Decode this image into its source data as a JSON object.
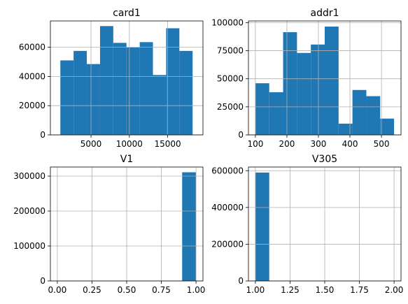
{
  "colors": {
    "bar": "#1f77b4",
    "grid": "#b0b0b0",
    "axis": "#000000"
  },
  "chart_data": [
    {
      "type": "bar",
      "title": "card1",
      "bin_edges": [
        1000,
        2725,
        4450,
        6175,
        7900,
        9625,
        11350,
        13075,
        14800,
        16525,
        18250
      ],
      "values": [
        51000,
        57500,
        48500,
        74500,
        63000,
        60000,
        63500,
        41000,
        73000,
        57500
      ],
      "xlim": [
        -300,
        19600
      ],
      "ylim": [
        0,
        78000
      ],
      "xticks": [
        5000,
        10000,
        15000
      ],
      "xtick_labels": [
        "5000",
        "10000",
        "15000"
      ],
      "yticks": [
        0,
        20000,
        40000,
        60000
      ],
      "ytick_labels": [
        "0",
        "20000",
        "40000",
        "60000"
      ],
      "grid": true
    },
    {
      "type": "bar",
      "title": "addr1",
      "bin_edges": [
        100,
        144,
        188,
        232,
        276,
        320,
        364,
        408,
        452,
        496,
        540
      ],
      "values": [
        46000,
        38000,
        91500,
        73000,
        80500,
        96500,
        10000,
        40000,
        34500,
        14500
      ],
      "xlim": [
        78,
        562
      ],
      "ylim": [
        0,
        101500
      ],
      "xticks": [
        100,
        200,
        300,
        400,
        500
      ],
      "xtick_labels": [
        "100",
        "200",
        "300",
        "400",
        "500"
      ],
      "yticks": [
        0,
        25000,
        50000,
        75000,
        100000
      ],
      "ytick_labels": [
        "0",
        "25000",
        "50000",
        "75000",
        "100000"
      ],
      "grid": true
    },
    {
      "type": "bar",
      "title": "V1",
      "bin_edges": [
        0,
        0.1,
        0.2,
        0.3,
        0.4,
        0.5,
        0.6,
        0.7,
        0.8,
        0.9,
        1.0
      ],
      "values": [
        0,
        0,
        0,
        0,
        0,
        0,
        0,
        0,
        0,
        311000
      ],
      "xlim": [
        -0.05,
        1.05
      ],
      "ylim": [
        0,
        326000
      ],
      "xticks": [
        0,
        0.25,
        0.5,
        0.75,
        1.0
      ],
      "xtick_labels": [
        "0.00",
        "0.25",
        "0.50",
        "0.75",
        "1.00"
      ],
      "yticks": [
        0,
        100000,
        200000,
        300000
      ],
      "ytick_labels": [
        "0",
        "100000",
        "200000",
        "300000"
      ],
      "grid": true
    },
    {
      "type": "bar",
      "title": "V305",
      "bin_edges": [
        1.0,
        1.1,
        1.2,
        1.3,
        1.4,
        1.5,
        1.6,
        1.7,
        1.8,
        1.9,
        2.0
      ],
      "values": [
        590000,
        0,
        0,
        0,
        0,
        0,
        0,
        0,
        0,
        0
      ],
      "xlim": [
        0.95,
        2.05
      ],
      "ylim": [
        0,
        620000
      ],
      "xticks": [
        1.0,
        1.25,
        1.5,
        1.75,
        2.0
      ],
      "xtick_labels": [
        "1.00",
        "1.25",
        "1.50",
        "1.75",
        "2.00"
      ],
      "yticks": [
        0,
        200000,
        400000,
        600000
      ],
      "ytick_labels": [
        "0",
        "200000",
        "400000",
        "600000"
      ],
      "grid": true
    }
  ]
}
